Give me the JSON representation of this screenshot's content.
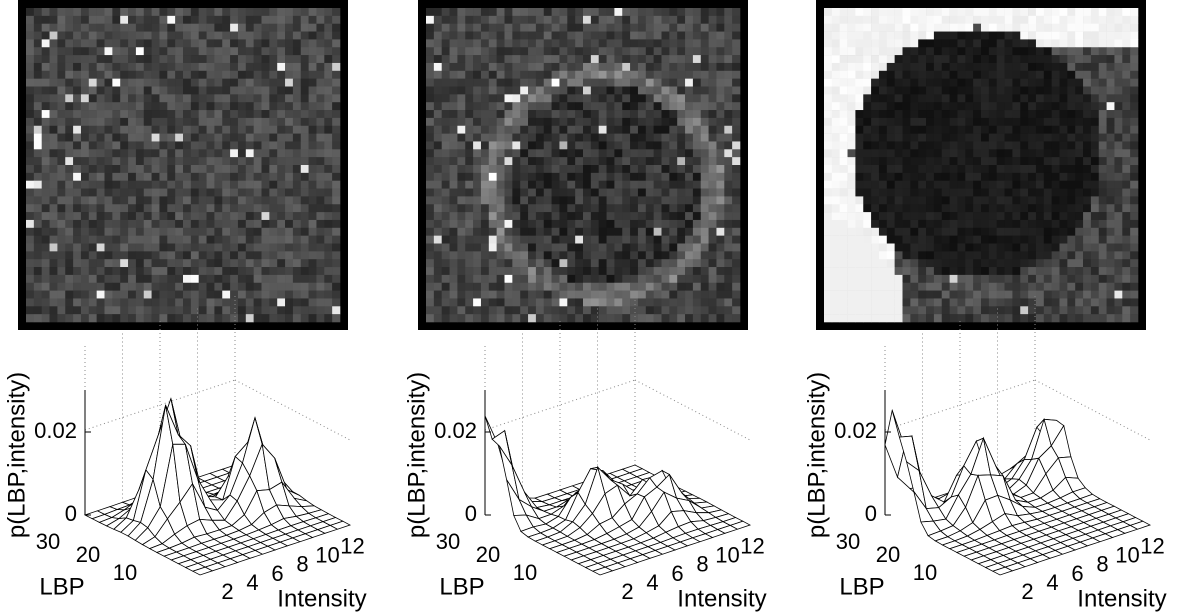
{
  "panels": [
    {
      "z_label": "p(LBP,intensity)",
      "z_ticks": [
        0,
        0.02
      ],
      "lbp_label": "LBP",
      "lbp_ticks": [
        30,
        20,
        10
      ],
      "intensity_label": "Intensity",
      "intensity_ticks": [
        2,
        4,
        6,
        8,
        10,
        12
      ]
    },
    {
      "z_label": "p(LBP,intensity)",
      "z_ticks": [
        0,
        0.02
      ],
      "lbp_label": "LBP",
      "lbp_ticks": [
        30,
        20,
        10
      ],
      "intensity_label": "Intensity",
      "intensity_ticks": [
        2,
        4,
        6,
        8,
        10,
        12
      ]
    },
    {
      "z_label": "p(LBP,intensity)",
      "z_ticks": [
        0,
        0.02
      ],
      "lbp_label": "LBP",
      "lbp_ticks": [
        30,
        20,
        10
      ],
      "intensity_label": "Intensity",
      "intensity_ticks": [
        2,
        4,
        6,
        8,
        10,
        12
      ]
    }
  ]
}
